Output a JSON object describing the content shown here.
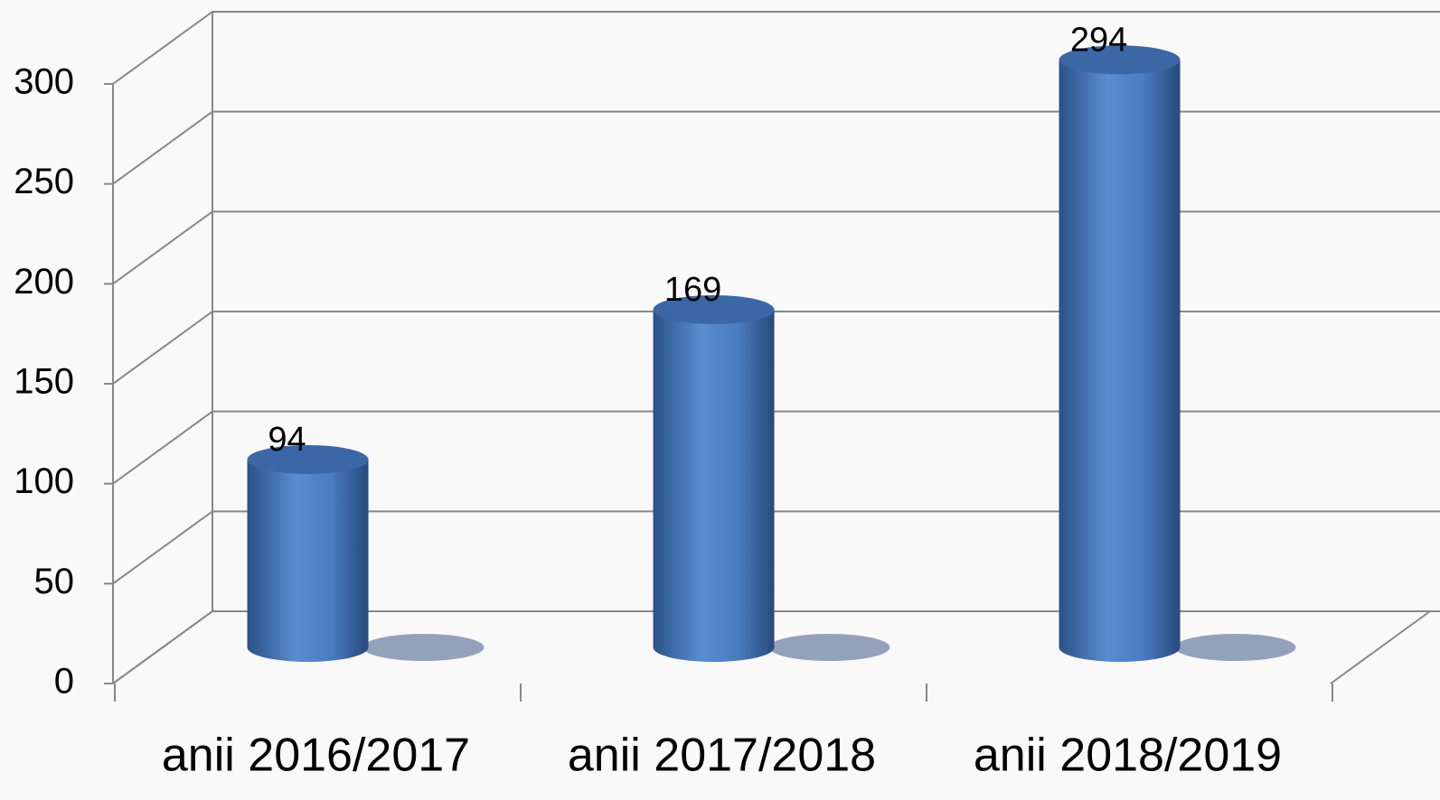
{
  "chart_data": {
    "type": "bar3d",
    "categories": [
      "anii 2016/2017",
      "anii 2017/2018",
      "anii 2018/2019"
    ],
    "values": [
      94,
      169,
      294
    ],
    "color": "#4f81bd",
    "ylim": [
      0,
      300
    ],
    "yticks": [
      0,
      50,
      100,
      150,
      200,
      250,
      300
    ],
    "grid": true
  }
}
